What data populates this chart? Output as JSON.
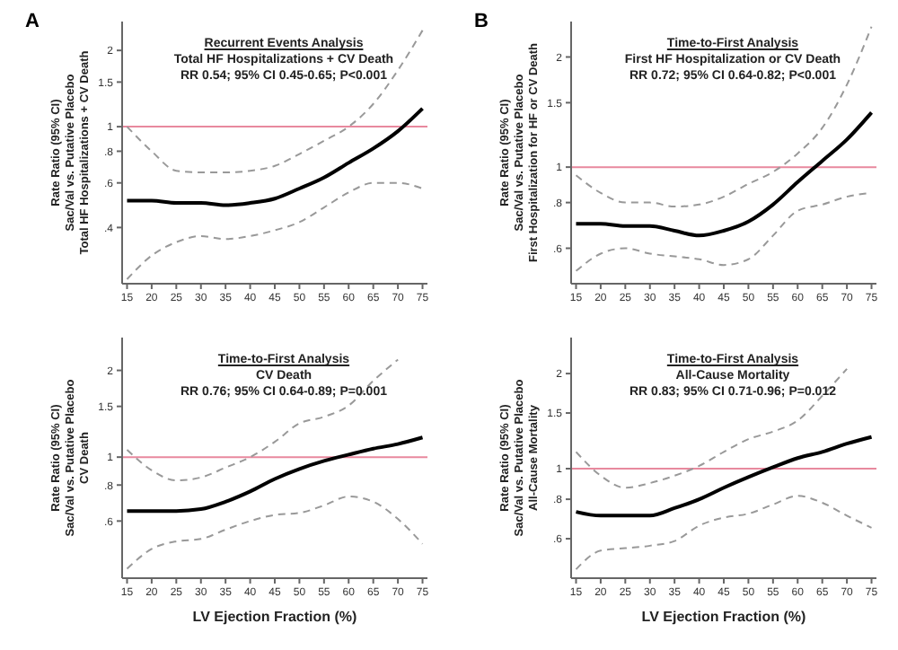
{
  "chart_data": [
    {
      "type": "line",
      "title": "Recurrent Events Analysis",
      "subtitle": "Total HF Hospitalizations + CV Death",
      "annotations": [
        "RR 0.54; 95% CI 0.45-0.65; P<0.001",
        "A"
      ],
      "ylabel": "Rate Ratio (95% CI)\nSac/Val vs. Putative Placebo\nTotal HF Hospitalizations + CV Death",
      "log": "y",
      "x": [
        15,
        20,
        25,
        30,
        35,
        40,
        45,
        50,
        55,
        60,
        65,
        70,
        75
      ],
      "xlim": [
        14,
        76
      ],
      "xticks": [
        15,
        20,
        25,
        30,
        35,
        40,
        45,
        50,
        55,
        60,
        65,
        70,
        75
      ],
      "ylim": [
        0.24,
        2.6
      ],
      "yticks": [
        {
          "value": 0.4,
          "label": ".4"
        },
        {
          "value": 0.6,
          "label": ".6"
        },
        {
          "value": 0.8,
          "label": ".8"
        },
        1,
        1.5,
        2
      ],
      "ref_lines": [
        {
          "axis": "y",
          "value": 1,
          "color": "#e8899e"
        }
      ],
      "marker": "none",
      "series": [
        {
          "color": "#000000",
          "line_style": "solid",
          "values": [
            0.51,
            0.51,
            0.5,
            0.5,
            0.49,
            0.5,
            0.52,
            0.57,
            0.63,
            0.72,
            0.82,
            0.96,
            1.18
          ]
        },
        {
          "color": "#999999",
          "line_style": "dashed",
          "values": [
            1.0,
            0.8,
            0.67,
            0.66,
            0.66,
            0.67,
            0.7,
            0.78,
            0.88,
            1.0,
            1.23,
            1.67,
            2.4
          ]
        },
        {
          "color": "#999999",
          "line_style": "dashed",
          "values": [
            0.25,
            0.31,
            0.35,
            0.37,
            0.36,
            0.37,
            0.39,
            0.42,
            0.48,
            0.55,
            0.6,
            0.6,
            0.57
          ]
        }
      ]
    },
    {
      "type": "line",
      "title": "Time-to-First Analysis",
      "subtitle": "First HF Hospitalization or CV Death",
      "annotations": [
        "RR 0.72; 95% CI 0.64-0.82; P<0.001",
        "B"
      ],
      "ylabel": "Rate Ratio (95% CI)\nSac/Val vs. Putative Placebo\nFirst Hospitalization for HF or CV Death",
      "log": "y",
      "x": [
        15,
        20,
        25,
        30,
        35,
        40,
        45,
        50,
        55,
        60,
        65,
        70,
        75
      ],
      "xlim": [
        14,
        76
      ],
      "xticks": [
        15,
        20,
        25,
        30,
        35,
        40,
        45,
        50,
        55,
        60,
        65,
        70,
        75
      ],
      "ylim": [
        0.48,
        2.5
      ],
      "yticks": [
        {
          "value": 0.6,
          "label": ".6"
        },
        {
          "value": 0.8,
          "label": ".8"
        },
        1,
        1.5,
        2
      ],
      "ref_lines": [
        {
          "axis": "y",
          "value": 1,
          "color": "#e8899e"
        }
      ],
      "marker": "none",
      "series": [
        {
          "color": "#000000",
          "line_style": "solid",
          "values": [
            0.7,
            0.7,
            0.69,
            0.69,
            0.67,
            0.65,
            0.67,
            0.71,
            0.79,
            0.91,
            1.04,
            1.19,
            1.41
          ]
        },
        {
          "color": "#999999",
          "line_style": "dashed",
          "values": [
            0.95,
            0.85,
            0.8,
            0.8,
            0.78,
            0.79,
            0.83,
            0.9,
            0.97,
            1.09,
            1.28,
            1.68,
            2.42
          ]
        },
        {
          "color": "#999999",
          "line_style": "dashed",
          "values": [
            0.52,
            0.58,
            0.6,
            0.58,
            0.57,
            0.56,
            0.54,
            0.56,
            0.65,
            0.76,
            0.79,
            0.83,
            0.85
          ]
        }
      ]
    },
    {
      "type": "line",
      "title": "Time-to-First Analysis",
      "subtitle": "CV Death",
      "annotations": [
        "RR 0.76; 95% CI 0.64-0.89; P=0.001"
      ],
      "ylabel": "Rate Ratio (95% CI)\nSac/Val vs. Putative Placebo\nCV Death",
      "xlabel": "LV Ejection Fraction (%)",
      "log": "y",
      "x": [
        15,
        20,
        25,
        30,
        35,
        40,
        45,
        50,
        55,
        60,
        65,
        70,
        75
      ],
      "xlim": [
        14,
        76
      ],
      "xticks": [
        15,
        20,
        25,
        30,
        35,
        40,
        45,
        50,
        55,
        60,
        65,
        70,
        75
      ],
      "ylim": [
        0.38,
        2.6
      ],
      "yticks": [
        {
          "value": 0.6,
          "label": ".6"
        },
        {
          "value": 0.8,
          "label": ".8"
        },
        1,
        1.5,
        2
      ],
      "ref_lines": [
        {
          "axis": "y",
          "value": 1,
          "color": "#e8899e"
        }
      ],
      "marker": "none",
      "series": [
        {
          "color": "#000000",
          "line_style": "solid",
          "values": [
            0.65,
            0.65,
            0.65,
            0.66,
            0.7,
            0.76,
            0.84,
            0.91,
            0.97,
            1.02,
            1.07,
            1.11,
            1.17
          ]
        },
        {
          "color": "#999999",
          "line_style": "dashed",
          "values": [
            1.06,
            0.9,
            0.83,
            0.85,
            0.92,
            1.0,
            1.13,
            1.31,
            1.38,
            1.51,
            1.84,
            2.18,
            null
          ]
        },
        {
          "color": "#999999",
          "line_style": "dashed",
          "values": [
            0.41,
            0.48,
            0.51,
            0.52,
            0.56,
            0.6,
            0.63,
            0.64,
            0.68,
            0.73,
            0.7,
            0.61,
            0.5
          ]
        }
      ]
    },
    {
      "type": "line",
      "title": "Time-to-First Analysis",
      "subtitle": "All-Cause Mortality",
      "annotations": [
        "RR 0.83; 95% CI 0.71-0.96; P=0.012"
      ],
      "ylabel": "Rate Ratio (95% CI)\nSac/Val vs. Putative Placebo\nAll-Cause Mortality",
      "xlabel": "LV Ejection Fraction (%)",
      "log": "y",
      "x": [
        15,
        20,
        25,
        30,
        35,
        40,
        45,
        50,
        55,
        60,
        65,
        70,
        75
      ],
      "xlim": [
        14,
        76
      ],
      "xticks": [
        15,
        20,
        25,
        30,
        35,
        40,
        45,
        50,
        55,
        60,
        65,
        70,
        75
      ],
      "ylim": [
        0.45,
        2.6
      ],
      "yticks": [
        {
          "value": 0.6,
          "label": ".6"
        },
        {
          "value": 0.8,
          "label": ".8"
        },
        1,
        1.5,
        2
      ],
      "ref_lines": [
        {
          "axis": "y",
          "value": 1,
          "color": "#e8899e"
        }
      ],
      "marker": "none",
      "series": [
        {
          "color": "#000000",
          "line_style": "solid",
          "values": [
            0.73,
            0.71,
            0.71,
            0.71,
            0.75,
            0.8,
            0.87,
            0.94,
            1.01,
            1.08,
            1.13,
            1.2,
            1.26
          ]
        },
        {
          "color": "#999999",
          "line_style": "dashed",
          "values": [
            1.13,
            0.95,
            0.87,
            0.9,
            0.95,
            1.02,
            1.13,
            1.24,
            1.31,
            1.42,
            1.7,
            2.07,
            null
          ]
        },
        {
          "color": "#999999",
          "line_style": "dashed",
          "values": [
            0.48,
            0.55,
            0.56,
            0.57,
            0.59,
            0.66,
            0.7,
            0.72,
            0.77,
            0.82,
            0.78,
            0.71,
            0.65
          ]
        }
      ]
    }
  ]
}
